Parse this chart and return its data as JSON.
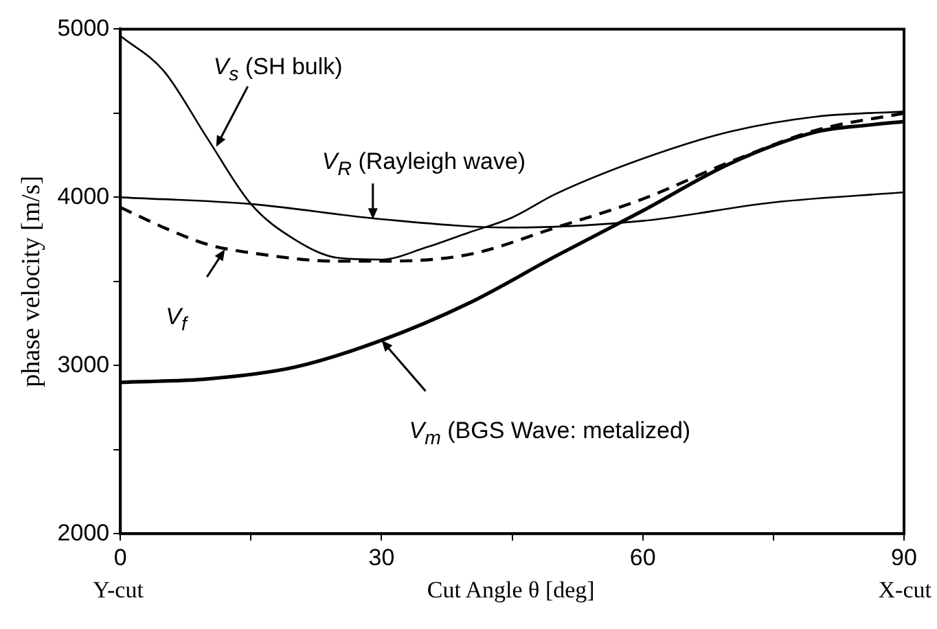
{
  "chart_data": {
    "type": "line",
    "xlabel": "Cut Angle θ [deg]",
    "ylabel": "phase velocity [m/s]",
    "xlim": [
      0,
      90
    ],
    "xticks": [
      0,
      {
        "value": 15,
        "label": null
      },
      30,
      {
        "value": 45,
        "label": null
      },
      60,
      {
        "value": 75,
        "label": null
      },
      90
    ],
    "ylim": [
      2000,
      5000
    ],
    "yticks": [
      2000,
      {
        "value": 2500,
        "label": null
      },
      3000,
      {
        "value": 3500,
        "label": null
      },
      4000,
      {
        "value": 4500,
        "label": null
      },
      5000
    ],
    "grid": false,
    "legend": false,
    "marker": "none",
    "series": [
      {
        "color": "#000000",
        "line_style": "solid",
        "x": [
          0,
          5,
          10,
          15,
          20,
          25,
          30,
          35,
          40,
          45,
          50,
          60,
          70,
          80,
          90
        ],
        "values": [
          4960,
          4750,
          4350,
          3960,
          3750,
          3640,
          3630,
          3700,
          3790,
          3880,
          4020,
          4230,
          4390,
          4480,
          4510
        ]
      },
      {
        "color": "#000000",
        "line_style": "solid",
        "x": [
          0,
          15,
          30,
          45,
          60,
          75,
          90
        ],
        "values": [
          4000,
          3960,
          3870,
          3820,
          3860,
          3970,
          4030
        ]
      },
      {
        "color": "#000000",
        "line_style": "dashed",
        "x": [
          0,
          5,
          10,
          15,
          25,
          30,
          40,
          50,
          60,
          70,
          80,
          90
        ],
        "values": [
          3940,
          3820,
          3720,
          3670,
          3620,
          3620,
          3660,
          3820,
          3990,
          4210,
          4400,
          4500
        ]
      },
      {
        "color": "#000000",
        "line_style": "solid",
        "x": [
          0,
          10,
          20,
          30,
          40,
          50,
          60,
          70,
          80,
          86,
          90
        ],
        "values": [
          2900,
          2920,
          2990,
          3150,
          3370,
          3650,
          3920,
          4200,
          4390,
          4430,
          4450
        ]
      }
    ],
    "annotations": [
      {
        "text": "V$_{s}$ (SH bulk)",
        "x": 11,
        "y": 4300
      },
      {
        "text": "V$_{R}$ (Rayleigh wave)",
        "x": 29,
        "y": 3870
      },
      {
        "text": "V$_{f}$",
        "x": 12,
        "y": 3690
      },
      {
        "text": "V$_{m}$ (BGS Wave: metalized)",
        "x": 30,
        "y": 3150
      },
      "Y-cut",
      "X-cut"
    ]
  }
}
